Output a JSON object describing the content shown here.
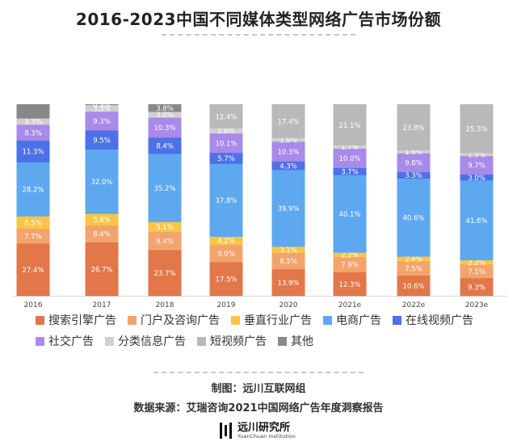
{
  "title": "2016-2023中国不同媒体类型网络广告市场份额",
  "chart_data": {
    "type": "bar",
    "stacked": true,
    "percent": true,
    "categories": [
      "2016",
      "2017",
      "2018",
      "2019",
      "2020",
      "2021e",
      "2022e",
      "2023e"
    ],
    "series": [
      {
        "name": "搜索引擎广告",
        "color": "#e2774a",
        "values": [
          27.4,
          26.7,
          23.7,
          17.5,
          13.9,
          12.3,
          10.6,
          9.3
        ]
      },
      {
        "name": "门户及咨询广告",
        "color": "#f2a46c",
        "values": [
          7.7,
          8.4,
          9.4,
          9.0,
          8.5,
          7.9,
          7.5,
          7.1
        ]
      },
      {
        "name": "垂直行业广告",
        "color": "#f7c646",
        "values": [
          6.5,
          5.8,
          5.1,
          4.2,
          3.1,
          2.2,
          2.4,
          2.2
        ]
      },
      {
        "name": "电商广告",
        "color": "#5ea8f0",
        "values": [
          28.2,
          32.0,
          35.2,
          37.8,
          39.9,
          40.1,
          40.6,
          41.6
        ]
      },
      {
        "name": "在线视频广告",
        "color": "#4d71e6",
        "values": [
          11.3,
          9.5,
          8.4,
          5.7,
          4.3,
          3.7,
          3.3,
          3.0
        ]
      },
      {
        "name": "社交广告",
        "color": "#a88ae8",
        "values": [
          8.3,
          9.3,
          10.3,
          10.1,
          10.3,
          10.0,
          9.8,
          9.7
        ]
      },
      {
        "name": "分类信息广告",
        "color": "#d0d0d0",
        "values": [
          3.3,
          3.3,
          3.0,
          2.6,
          1.9,
          1.7,
          1.6,
          1.5
        ]
      },
      {
        "name": "短视频广告",
        "color": "#b9b9b9",
        "values": [
          null,
          null,
          null,
          12.4,
          17.4,
          21.1,
          23.8,
          25.3
        ]
      },
      {
        "name": "其他",
        "color": "#888888",
        "values": [
          7.3,
          0.3,
          3.8,
          null,
          null,
          null,
          null,
          null
        ]
      }
    ],
    "labels": [
      [
        "27.4%",
        "7.7%",
        "6.5%",
        "28.2%",
        "11.3%",
        "8.3%",
        "3.3%",
        "",
        ""
      ],
      [
        "26.7%",
        "8.4%",
        "5.8%",
        "32.0%",
        "9.5%",
        "9.3%",
        "3.3%",
        "",
        "0.3%"
      ],
      [
        "23.7%",
        "9.4%",
        "5.1%",
        "35.2%",
        "8.4%",
        "10.3%",
        "3.0%",
        "",
        "3.8%"
      ],
      [
        "17.5%",
        "9.0%",
        "4.2%",
        "37.8%",
        "5.7%",
        "10.1%",
        "2.6%",
        "12.4%",
        ""
      ],
      [
        "13.9%",
        "8.5%",
        "3.1%",
        "39.9%",
        "4.3%",
        "10.3%",
        "1.9%",
        "17.4%",
        ""
      ],
      [
        "12.3%",
        "7.9%",
        "2.2%",
        "40.1%",
        "3.7%",
        "10.0%",
        "1.7%",
        "21.1%",
        ""
      ],
      [
        "10.6%",
        "7.5%",
        "2.4%",
        "40.6%",
        "3.3%",
        "9.8%",
        "1.6%",
        "23.8%",
        ""
      ],
      [
        "9.3%",
        "7.1%",
        "2.2%",
        "41.6%",
        "3.0%",
        "9.7%",
        "1.5%",
        "25.3%",
        ""
      ]
    ],
    "legend_position": "bottom",
    "grid": false
  },
  "footer": {
    "maker": "制图：远川互联网组",
    "source": "数据来源：艾瑞咨询2021中国网络广告年度洞察报告"
  },
  "logo": {
    "name": "远川研究所",
    "subtitle": "YuanChuan Institution"
  }
}
